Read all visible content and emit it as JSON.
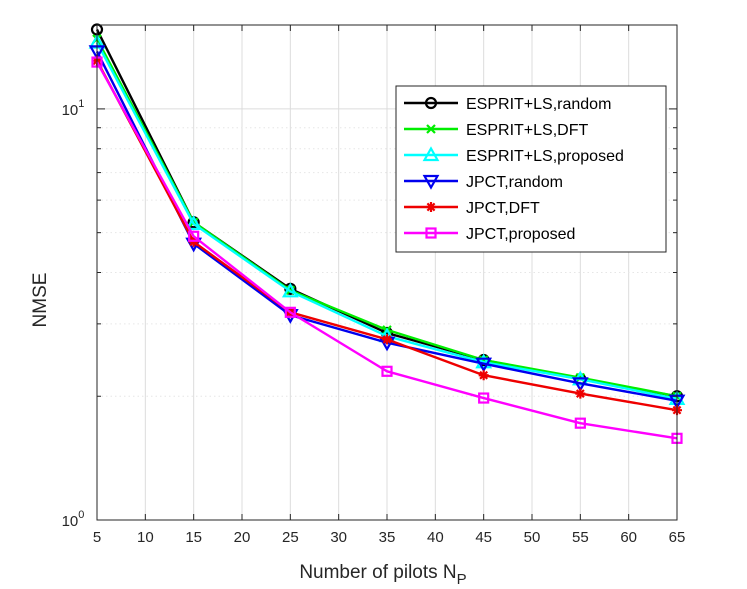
{
  "chart_data": {
    "type": "line",
    "title": "",
    "xlabel": "Number of pilots N",
    "xlabel_sub": "P",
    "ylabel": "NMSE",
    "xscale": "linear",
    "yscale": "log",
    "xlim": [
      5,
      65
    ],
    "ylim": [
      1,
      16
    ],
    "xticks": [
      5,
      10,
      15,
      20,
      25,
      30,
      35,
      40,
      45,
      50,
      55,
      60,
      65
    ],
    "xtick_labels": [
      "5",
      "10",
      "15",
      "20",
      "25",
      "30",
      "35",
      "40",
      "45",
      "50",
      "55",
      "60",
      "65"
    ],
    "ytick_labels": [
      {
        "value": 1,
        "base": "10",
        "exp": "0"
      },
      {
        "value": 10,
        "base": "10",
        "exp": "1"
      }
    ],
    "grid": true,
    "legend_position": "top-right",
    "x": [
      5,
      15,
      25,
      35,
      45,
      55,
      65
    ],
    "series": [
      {
        "name": "ESPRIT+LS,random",
        "color": "#000000",
        "marker": "circle",
        "values": [
          15.6,
          5.3,
          3.65,
          2.85,
          2.45,
          2.2,
          2.0
        ]
      },
      {
        "name": "ESPRIT+LS,DFT",
        "color": "#00ee00",
        "marker": "x",
        "values": [
          14.8,
          5.3,
          3.62,
          2.9,
          2.45,
          2.22,
          2.0
        ]
      },
      {
        "name": "ESPRIT+LS,proposed",
        "color": "#00ffff",
        "marker": "triangle-up",
        "values": [
          14.5,
          5.25,
          3.6,
          2.8,
          2.42,
          2.2,
          1.97
        ]
      },
      {
        "name": "JPCT,random",
        "color": "#0000ee",
        "marker": "triangle-down",
        "values": [
          13.8,
          4.7,
          3.15,
          2.7,
          2.4,
          2.15,
          1.95
        ]
      },
      {
        "name": "JPCT,DFT",
        "color": "#ee0000",
        "marker": "asterisk",
        "values": [
          13.1,
          4.75,
          3.2,
          2.75,
          2.25,
          2.03,
          1.85
        ]
      },
      {
        "name": "JPCT,proposed",
        "color": "#ff00ff",
        "marker": "square",
        "values": [
          13.0,
          4.9,
          3.2,
          2.3,
          1.98,
          1.72,
          1.58
        ]
      }
    ]
  }
}
